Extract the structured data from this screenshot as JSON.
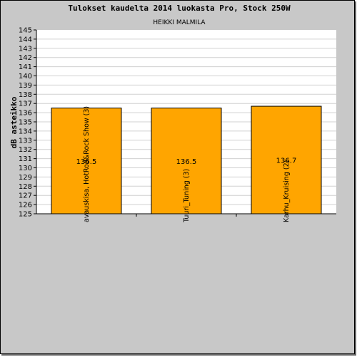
{
  "chart_data": {
    "type": "bar",
    "title": "Tulokset kaudelta 2014 luokasta Pro, Stock 250W",
    "subtitle": "HEIKKI MALMILA",
    "ylabel": "dB asteikko",
    "xlabel": "",
    "ylim": [
      125,
      145
    ],
    "ytick_step": 1,
    "grid": true,
    "legend": "none",
    "categories": [
      "avauskisa, HotRod&Rock Show (3)",
      "Tuuri_Tuning (3)",
      "Karhu_Kruising (2)"
    ],
    "values": [
      136.5,
      136.5,
      136.7
    ],
    "data_labels": [
      "136.5",
      "136.5",
      "136.7"
    ],
    "colors": {
      "bar": "#ffa500",
      "background": "#c8c8c8",
      "plot": "#ffffff",
      "grid": "#d0d0d0"
    }
  }
}
